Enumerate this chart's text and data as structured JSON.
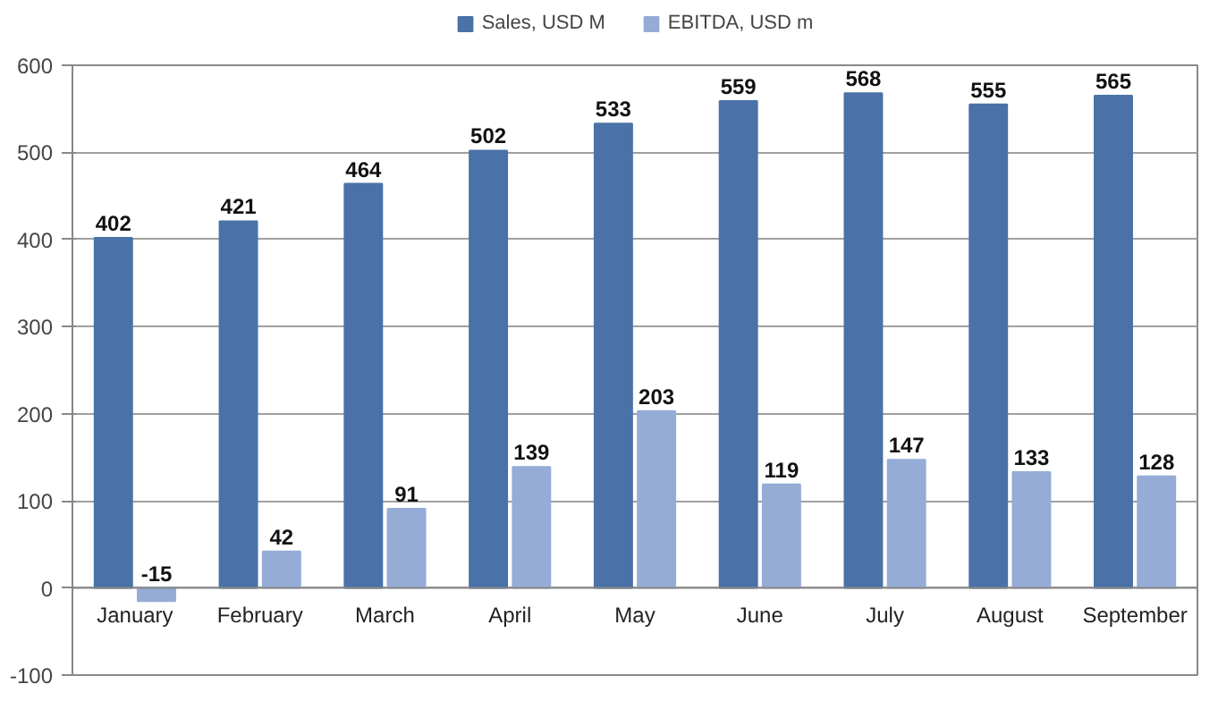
{
  "chart_data": {
    "type": "bar",
    "categories": [
      "January",
      "February",
      "March",
      "April",
      "May",
      "June",
      "July",
      "August",
      "September"
    ],
    "series": [
      {
        "name": "Sales, USD M",
        "color": "#4a72a8",
        "values": [
          402,
          421,
          464,
          502,
          533,
          559,
          568,
          555,
          565
        ]
      },
      {
        "name": "EBITDA, USD m",
        "color": "#95acd6",
        "values": [
          -15,
          42,
          91,
          139,
          203,
          119,
          147,
          133,
          128
        ]
      }
    ],
    "ylim": [
      -100,
      600
    ],
    "yticks": [
      -100,
      0,
      100,
      200,
      300,
      400,
      500,
      600
    ],
    "grid": "y",
    "legend": "top",
    "data_labels": true
  }
}
